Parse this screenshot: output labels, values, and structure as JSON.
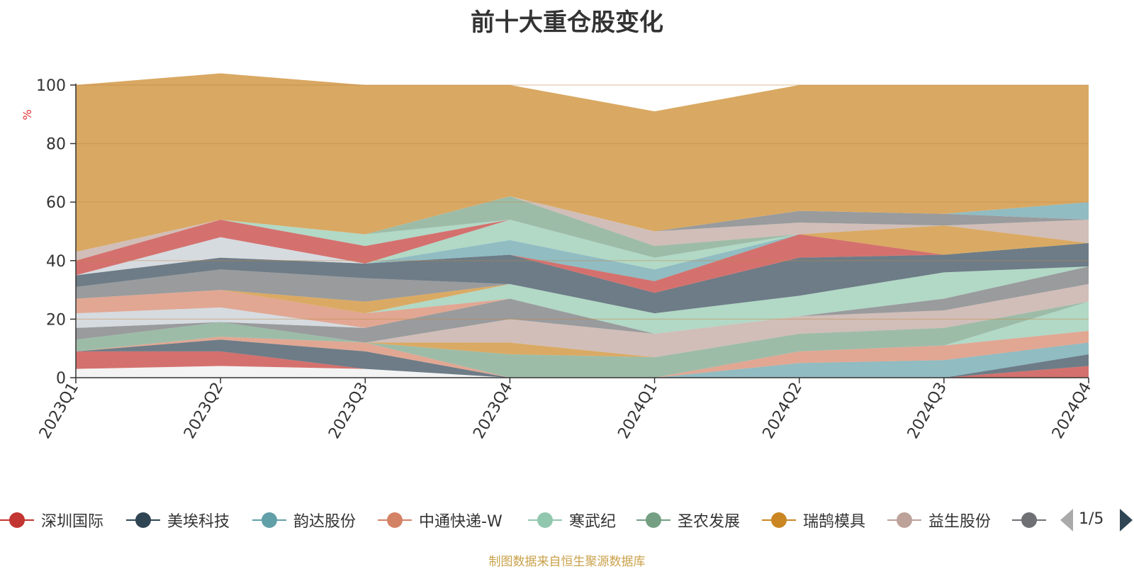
{
  "chart_data": {
    "type": "area",
    "stacked": true,
    "title": "前十大重仓股变化",
    "ylabel": "%",
    "xlabel": "",
    "ylim": [
      0,
      100
    ],
    "yticks": [
      0,
      20,
      40,
      60,
      80,
      100
    ],
    "categories": [
      "2023Q1",
      "2023Q2",
      "2023Q3",
      "2023Q4",
      "2024Q1",
      "2024Q2",
      "2024Q3",
      "2024Q4"
    ],
    "series": [
      {
        "name": "",
        "color": "#eeeeee",
        "values": [
          3,
          4,
          3,
          0,
          0,
          0,
          0,
          0
        ]
      },
      {
        "name": "深圳国际",
        "color": "#c23531",
        "values": [
          6,
          5,
          0,
          0,
          0,
          0,
          0,
          4
        ]
      },
      {
        "name": "美埃科技",
        "color": "#2f4554",
        "values": [
          0,
          4,
          6,
          0,
          0,
          0,
          0,
          4
        ]
      },
      {
        "name": "韵达股份",
        "color": "#61a0a8",
        "values": [
          0,
          0,
          0,
          0,
          0,
          5,
          6,
          4
        ]
      },
      {
        "name": "中通快递-W",
        "color": "#d48265",
        "values": [
          0,
          1,
          3,
          0,
          0,
          4,
          5,
          4
        ]
      },
      {
        "name": "寒武纪",
        "color": "#91c7ae",
        "values": [
          0,
          0,
          0,
          0,
          0,
          0,
          0,
          10
        ]
      },
      {
        "name": "圣农发展",
        "color": "#749f83",
        "values": [
          4,
          5,
          0,
          8,
          7,
          6,
          6,
          0
        ]
      },
      {
        "name": "瑞鹄模具",
        "color": "#ca8622",
        "values": [
          0,
          0,
          0,
          4,
          0,
          0,
          0,
          0
        ]
      },
      {
        "name": "益生股份",
        "color": "#bda29a",
        "values": [
          0,
          0,
          0,
          8,
          8,
          6,
          6,
          6
        ]
      },
      {
        "name": "",
        "color": "#6e7074",
        "values": [
          4,
          0,
          5,
          7,
          0,
          0,
          4,
          6
        ]
      },
      {
        "name": "",
        "color": "#c4ccd3",
        "values": [
          5,
          5,
          0,
          0,
          0,
          0,
          0,
          0
        ]
      },
      {
        "name": "",
        "color": "#d48265",
        "values": [
          5,
          6,
          5,
          0,
          0,
          0,
          0,
          0
        ]
      },
      {
        "name": "",
        "color": "#91c7ae",
        "values": [
          0,
          0,
          0,
          5,
          7,
          7,
          9,
          0
        ]
      },
      {
        "name": "",
        "color": "#ca8622",
        "values": [
          0,
          0,
          4,
          0,
          0,
          0,
          0,
          0
        ]
      },
      {
        "name": "",
        "color": "#6e7074",
        "values": [
          4,
          7,
          8,
          0,
          0,
          0,
          0,
          0
        ]
      },
      {
        "name": "",
        "color": "#2f4554",
        "values": [
          4,
          4,
          5,
          10,
          7,
          13,
          6,
          8
        ]
      },
      {
        "name": "",
        "color": "#c23531",
        "values": [
          0,
          0,
          0,
          0,
          4,
          8,
          0,
          0
        ]
      },
      {
        "name": "",
        "color": "#61a0a8",
        "values": [
          0,
          0,
          0,
          5,
          4,
          0,
          0,
          0
        ]
      },
      {
        "name": "",
        "color": "#91c7ae",
        "values": [
          0,
          0,
          0,
          7,
          4,
          0,
          0,
          0
        ]
      },
      {
        "name": "",
        "color": "#ca8622",
        "values": [
          0,
          0,
          0,
          0,
          0,
          0,
          10,
          0
        ]
      },
      {
        "name": "",
        "color": "#bda29a",
        "values": [
          0,
          0,
          0,
          0,
          0,
          0,
          0,
          8
        ]
      },
      {
        "name": "",
        "color": "#c4ccd3",
        "values": [
          0,
          7,
          0,
          0,
          0,
          0,
          0,
          0
        ]
      },
      {
        "name": "",
        "color": "#c23531",
        "values": [
          5,
          6,
          6,
          0,
          0,
          0,
          0,
          0
        ]
      },
      {
        "name": "",
        "color": "#91c7ae",
        "values": [
          0,
          0,
          4,
          0,
          0,
          0,
          0,
          0
        ]
      },
      {
        "name": "",
        "color": "#749f83",
        "values": [
          0,
          0,
          0,
          8,
          4,
          0,
          0,
          0
        ]
      },
      {
        "name": "",
        "color": "#bda29a",
        "values": [
          3,
          0,
          0,
          0,
          5,
          4,
          0,
          0
        ]
      },
      {
        "name": "",
        "color": "#6e7074",
        "values": [
          0,
          0,
          0,
          0,
          0,
          4,
          4,
          0
        ]
      },
      {
        "name": "",
        "color": "#61a0a8",
        "values": [
          0,
          0,
          0,
          0,
          0,
          0,
          0,
          6
        ]
      },
      {
        "name": "",
        "color": "#d48265",
        "values": [
          57,
          50,
          51,
          38,
          41,
          43,
          44,
          40
        ]
      }
    ]
  },
  "legend": {
    "items": [
      {
        "label": "深圳国际",
        "color": "#c23531"
      },
      {
        "label": "美埃科技",
        "color": "#2f4554"
      },
      {
        "label": "韵达股份",
        "color": "#61a0a8"
      },
      {
        "label": "中通快递-W",
        "color": "#d48265"
      },
      {
        "label": "寒武纪",
        "color": "#91c7ae"
      },
      {
        "label": "圣农发展",
        "color": "#749f83"
      },
      {
        "label": "瑞鹄模具",
        "color": "#ca8622"
      },
      {
        "label": "益生股份",
        "color": "#bda29a"
      },
      {
        "label": "",
        "color": "#6e7074"
      }
    ],
    "page_text": "1/5"
  },
  "source_note": "制图数据来自恒生聚源数据库",
  "colors": {
    "top_fill": "#d9a862",
    "axis": "#333333",
    "gridline": "#c08a4a",
    "ylabel": "#e03030"
  }
}
